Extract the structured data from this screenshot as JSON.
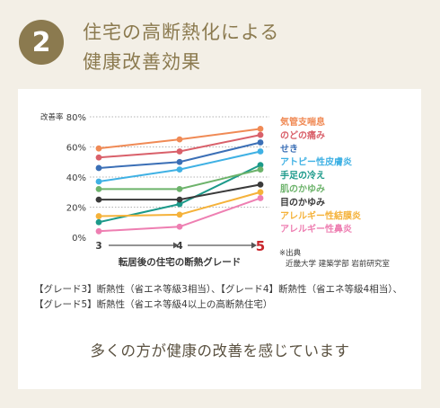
{
  "badge_number": "2",
  "heading": {
    "line1": "住宅の高断熱化による",
    "line2": "健康改善効果"
  },
  "chart_data": {
    "type": "line",
    "ylabel": "改善率",
    "ylim": [
      0,
      80
    ],
    "y_ticks": [
      "0%",
      "20%",
      "40%",
      "60%",
      "80%"
    ],
    "x": [
      "3",
      "4",
      "5"
    ],
    "xlabel": "転居後の住宅の断熱グレード",
    "grid": true,
    "legend_placement": "right",
    "series": [
      {
        "name": "気管支喘息",
        "color": "#f08a55",
        "values": [
          59,
          65,
          72
        ]
      },
      {
        "name": "のどの痛み",
        "color": "#d9606a",
        "values": [
          53,
          57,
          68
        ]
      },
      {
        "name": "せき",
        "color": "#3b6fb6",
        "values": [
          46,
          50,
          63
        ]
      },
      {
        "name": "アトピー性皮膚炎",
        "color": "#3fb1e4",
        "values": [
          37,
          45,
          57
        ]
      },
      {
        "name": "手足の冷え",
        "color": "#1c9a8a",
        "values": [
          10,
          22,
          48
        ]
      },
      {
        "name": "肌のかゆみ",
        "color": "#6db36b",
        "values": [
          32,
          32,
          45
        ]
      },
      {
        "name": "目のかゆみ",
        "color": "#3a3a3a",
        "values": [
          25,
          25,
          35
        ]
      },
      {
        "name": "アレルギー性結膜炎",
        "color": "#f5b23a",
        "values": [
          14,
          15,
          30
        ]
      },
      {
        "name": "アレルギー性鼻炎",
        "color": "#ee7fb2",
        "values": [
          4,
          7,
          26
        ]
      }
    ]
  },
  "source": {
    "line1": "※出典",
    "line2": "近畿大学 建築学部 岩前研究室"
  },
  "note": {
    "line1": "【グレード3】断熱性（省エネ等級3相当）、【グレード4】断熱性（省エネ等級4相当）、",
    "line2": "【グレード5】断熱性（省エネ等級4以上の高断熱住宅）"
  },
  "summary": "多くの方が健康の改善を感じています"
}
